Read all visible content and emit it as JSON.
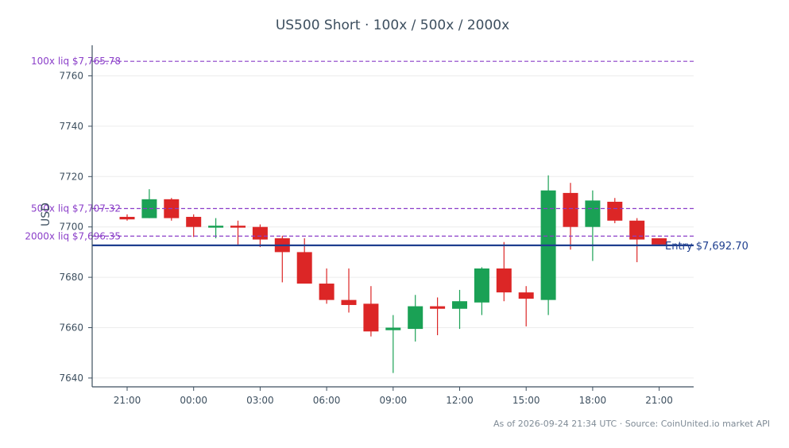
{
  "chart_data": {
    "type": "candlestick",
    "title": "US500 Short · 100x / 500x / 2000x",
    "ylabel": "USD",
    "xlabel": "",
    "ylim": [
      7636,
      7770
    ],
    "ytick_values": [
      7640,
      7660,
      7680,
      7700,
      7720,
      7740,
      7760
    ],
    "ytick_labels": [
      "7640",
      "7660",
      "7680",
      "7700",
      "7720",
      "7740",
      "7760"
    ],
    "xtick_labels": [
      "21:00",
      "00:00",
      "03:00",
      "06:00",
      "09:00",
      "12:00",
      "15:00",
      "18:00",
      "21:00"
    ],
    "grid": "horizontal",
    "candles": [
      {
        "t": "20:00",
        "o": 7704.0,
        "h": 7705.0,
        "l": 7702.5,
        "c": 7703.0
      },
      {
        "t": "21:00",
        "o": 7703.5,
        "h": 7715.0,
        "l": 7703.5,
        "c": 7711.0
      },
      {
        "t": "22:00",
        "o": 7711.0,
        "h": 7711.5,
        "l": 7702.5,
        "c": 7703.5
      },
      {
        "t": "23:00",
        "o": 7704.0,
        "h": 7705.0,
        "l": 7696.0,
        "c": 7700.0
      },
      {
        "t": "00:00",
        "o": 7700.0,
        "h": 7703.5,
        "l": 7695.5,
        "c": 7700.5
      },
      {
        "t": "01:00",
        "o": 7700.5,
        "h": 7702.5,
        "l": 7693.0,
        "c": 7700.0
      },
      {
        "t": "02:00",
        "o": 7700.0,
        "h": 7701.0,
        "l": 7692.0,
        "c": 7695.0
      },
      {
        "t": "03:00",
        "o": 7695.5,
        "h": 7696.5,
        "l": 7678.0,
        "c": 7690.0
      },
      {
        "t": "04:00",
        "o": 7690.0,
        "h": 7695.5,
        "l": 7677.5,
        "c": 7677.5
      },
      {
        "t": "05:00",
        "o": 7677.5,
        "h": 7683.5,
        "l": 7669.5,
        "c": 7671.0
      },
      {
        "t": "06:00",
        "o": 7671.0,
        "h": 7683.5,
        "l": 7666.0,
        "c": 7669.0
      },
      {
        "t": "07:00",
        "o": 7669.5,
        "h": 7676.5,
        "l": 7656.5,
        "c": 7658.5
      },
      {
        "t": "08:00",
        "o": 7659.0,
        "h": 7665.0,
        "l": 7642.0,
        "c": 7660.0
      },
      {
        "t": "09:00",
        "o": 7659.5,
        "h": 7673.0,
        "l": 7654.5,
        "c": 7668.5
      },
      {
        "t": "10:00",
        "o": 7668.5,
        "h": 7672.0,
        "l": 7657.0,
        "c": 7667.5
      },
      {
        "t": "11:00",
        "o": 7667.5,
        "h": 7675.0,
        "l": 7659.5,
        "c": 7670.5
      },
      {
        "t": "12:00",
        "o": 7670.0,
        "h": 7684.0,
        "l": 7665.0,
        "c": 7683.5
      },
      {
        "t": "13:00",
        "o": 7683.5,
        "h": 7694.0,
        "l": 7670.5,
        "c": 7674.0
      },
      {
        "t": "14:00",
        "o": 7674.0,
        "h": 7676.5,
        "l": 7660.5,
        "c": 7671.5
      },
      {
        "t": "15:00",
        "o": 7671.0,
        "h": 7720.5,
        "l": 7665.0,
        "c": 7714.5
      },
      {
        "t": "16:00",
        "o": 7713.5,
        "h": 7717.5,
        "l": 7691.0,
        "c": 7700.0
      },
      {
        "t": "17:00",
        "o": 7700.0,
        "h": 7714.5,
        "l": 7686.5,
        "c": 7710.5
      },
      {
        "t": "18:00",
        "o": 7710.0,
        "h": 7711.5,
        "l": 7701.5,
        "c": 7702.5
      },
      {
        "t": "19:00",
        "o": 7702.5,
        "h": 7703.5,
        "l": 7686.0,
        "c": 7695.0
      },
      {
        "t": "20:00",
        "o": 7695.5,
        "h": 7695.5,
        "l": 7692.7,
        "c": 7693.0
      }
    ],
    "up_color": "#1aa155",
    "down_color": "#dc2626",
    "reference_lines": [
      {
        "label": "100x liq $7,765.78",
        "value": 7765.78,
        "style": "dashed",
        "color": "#8b3fc9"
      },
      {
        "label": "500x liq $7,707.32",
        "value": 7707.32,
        "style": "dashed",
        "color": "#8b3fc9"
      },
      {
        "label": "2000x liq $7,696.35",
        "value": 7696.35,
        "style": "dashed",
        "color": "#8b3fc9"
      },
      {
        "label": "Entry $7,692.70",
        "value": 7692.7,
        "style": "solid",
        "color": "#1f3f8f"
      }
    ],
    "footnote": "As of 2026-09-24 21:34 UTC · Source: CoinUnited.io market API"
  }
}
